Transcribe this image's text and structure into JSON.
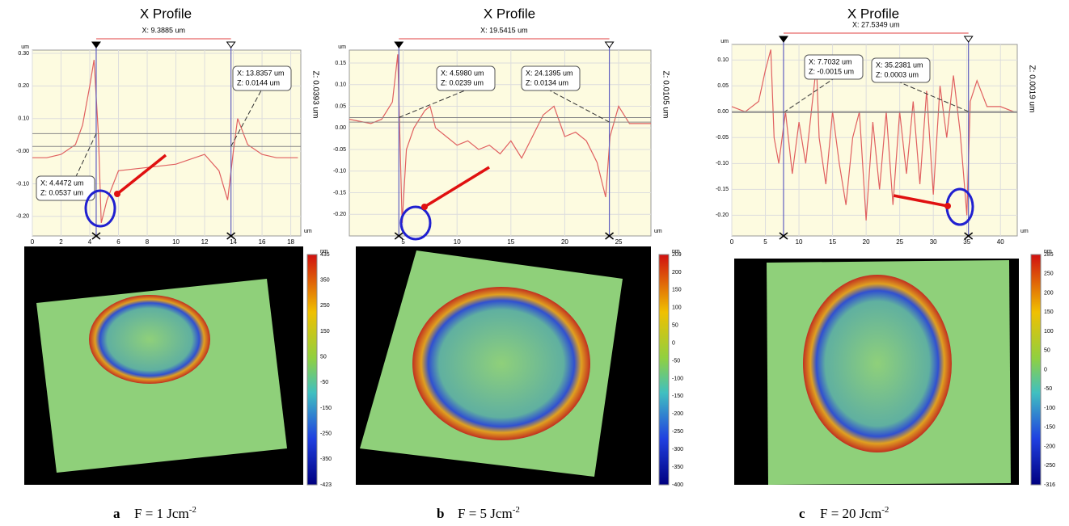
{
  "chart_data": [
    {
      "type": "line",
      "title": "X Profile",
      "measure": "X: 9.3885 um",
      "side_label": "Z: 0.0393 um",
      "xlabel": "um",
      "ylabel": "um",
      "color": "#e06060",
      "x": [
        0,
        1,
        2,
        3,
        3.5,
        4,
        4.3,
        4.6,
        4.8,
        5.2,
        6,
        8,
        10,
        12,
        13,
        13.6,
        14,
        14.3,
        15,
        16,
        17,
        18.5
      ],
      "values": [
        -0.02,
        -0.02,
        -0.01,
        0.02,
        0.08,
        0.2,
        0.28,
        0.05,
        -0.22,
        -0.15,
        -0.06,
        -0.05,
        -0.04,
        -0.01,
        -0.06,
        -0.15,
        0,
        0.1,
        0.02,
        -0.01,
        -0.02,
        -0.02
      ],
      "xlim": [
        0,
        18.7
      ],
      "ylim": [
        -0.26,
        0.31
      ],
      "xticks": [
        0,
        2,
        4,
        6,
        8,
        10,
        12,
        14,
        16,
        18
      ],
      "yticks": [
        {
          "value": -0.2,
          "label": "-0.20"
        },
        {
          "value": -0.1,
          "label": "-0.10"
        },
        {
          "value": 0,
          "label": "-0.00"
        },
        {
          "value": 0.1,
          "label": "0.10"
        },
        {
          "value": 0.2,
          "label": "0.20"
        },
        {
          "value": 0.3,
          "label": "0.30"
        }
      ],
      "grid": true,
      "cursors": [
        {
          "x": 4.4472,
          "z": 0.0537,
          "x_label": "X: 4.4472 um",
          "z_label": "Z: 0.0537 um"
        },
        {
          "x": 13.8357,
          "z": 0.0144,
          "x_label": "X: 13.8357 um",
          "z_label": "Z: 0.0144 um"
        }
      ]
    },
    {
      "type": "line",
      "title": "X Profile",
      "measure": "X: 19.5415 um",
      "side_label": "Z: 0.0105 um",
      "xlabel": "um",
      "ylabel": "um",
      "color": "#e06060",
      "x": [
        0,
        2,
        3,
        4,
        4.5,
        4.9,
        5.3,
        6,
        7,
        7.5,
        8,
        9,
        10,
        11,
        12,
        13,
        14,
        15,
        16,
        17,
        18,
        19,
        20,
        21,
        22,
        23,
        23.8,
        24.2,
        25,
        26,
        27,
        28
      ],
      "values": [
        0.02,
        0.01,
        0.02,
        0.06,
        0.17,
        -0.22,
        -0.05,
        0,
        0.04,
        0.05,
        0,
        -0.02,
        -0.04,
        -0.03,
        -0.05,
        -0.04,
        -0.06,
        -0.03,
        -0.07,
        -0.02,
        0.03,
        0.05,
        -0.02,
        -0.01,
        -0.03,
        -0.08,
        -0.16,
        -0.02,
        0.05,
        0.01,
        0.01,
        0.01
      ],
      "xlim": [
        0,
        28
      ],
      "ylim": [
        -0.25,
        0.18
      ],
      "xticks": [
        5,
        10,
        15,
        20,
        25
      ],
      "yticks": [
        {
          "value": -0.2,
          "label": "-0.20"
        },
        {
          "value": -0.15,
          "label": "-0.15"
        },
        {
          "value": -0.1,
          "label": "-0.10"
        },
        {
          "value": -0.05,
          "label": "-0.05"
        },
        {
          "value": 0,
          "label": "0.00"
        },
        {
          "value": 0.05,
          "label": "0.05"
        },
        {
          "value": 0.1,
          "label": "0.10"
        },
        {
          "value": 0.15,
          "label": "0.15"
        }
      ],
      "grid": true,
      "cursors": [
        {
          "x": 4.598,
          "z": 0.0239,
          "x_label": "X: 4.5980 um",
          "z_label": "Z: 0.0239 um"
        },
        {
          "x": 24.1395,
          "z": 0.0134,
          "x_label": "X: 24.1395 um",
          "z_label": "Z: 0.0134 um"
        }
      ]
    },
    {
      "type": "line",
      "title": "X Profile",
      "measure": "X: 27.5349 um",
      "side_label": "Z: 0.0019 um",
      "xlabel": "um",
      "ylabel": "um",
      "color": "#e06060",
      "x": [
        0,
        2,
        4,
        5,
        5.8,
        6.3,
        7,
        8,
        9,
        10,
        11,
        12,
        12.6,
        13,
        14,
        15,
        16,
        17,
        18,
        19,
        20,
        21,
        22,
        23,
        24,
        25,
        26,
        27,
        28,
        29,
        30,
        31,
        32,
        33,
        34,
        35,
        35.5,
        36.5,
        38,
        40,
        42
      ],
      "values": [
        0.01,
        0,
        0.02,
        0.08,
        0.12,
        -0.05,
        -0.1,
        0,
        -0.12,
        -0.02,
        -0.1,
        0.02,
        0.09,
        -0.05,
        -0.14,
        0,
        -0.1,
        -0.18,
        -0.05,
        0,
        -0.21,
        -0.02,
        -0.15,
        0,
        -0.18,
        0,
        -0.12,
        0.02,
        -0.14,
        0.04,
        -0.16,
        0.05,
        -0.05,
        0.07,
        -0.04,
        -0.2,
        0.02,
        0.06,
        0.01,
        0.01,
        0
      ],
      "xlim": [
        0,
        42.5
      ],
      "ylim": [
        -0.24,
        0.13
      ],
      "xticks": [
        0,
        5,
        10,
        15,
        20,
        25,
        30,
        35,
        40
      ],
      "yticks": [
        {
          "value": -0.2,
          "label": "-0.20"
        },
        {
          "value": -0.15,
          "label": "-0.15"
        },
        {
          "value": -0.1,
          "label": "-0.10"
        },
        {
          "value": -0.05,
          "label": "-0.05"
        },
        {
          "value": 0,
          "label": "0.00"
        },
        {
          "value": 0.05,
          "label": "0.05"
        },
        {
          "value": 0.1,
          "label": "0.10"
        }
      ],
      "grid": true,
      "cursors": [
        {
          "x": 7.7032,
          "z": -0.0015,
          "x_label": "X: 7.7032 um",
          "z_label": "Z: -0.0015 um"
        },
        {
          "x": 35.2381,
          "z": 0.0003,
          "x_label": "X: 35.2381 um",
          "z_label": "Z: 0.0003 um"
        }
      ]
    }
  ],
  "panels": [
    {
      "colorbar_unit": "nm",
      "colorbar_ticks": [
        "435",
        "350",
        "250",
        "150",
        "50",
        "-50",
        "-150",
        "-250",
        "-350",
        "-423"
      ],
      "letter": "a",
      "caption": "F = 1 Jcm",
      "caption_sup": "-2"
    },
    {
      "colorbar_unit": "nm",
      "colorbar_ticks": [
        "209",
        "200",
        "150",
        "100",
        "50",
        "0",
        "-50",
        "-100",
        "-150",
        "-200",
        "-250",
        "-300",
        "-350",
        "-400"
      ],
      "letter": "b",
      "caption": "F = 5 Jcm",
      "caption_sup": "-2"
    },
    {
      "colorbar_unit": "nm",
      "colorbar_ticks": [
        "285",
        "250",
        "200",
        "150",
        "100",
        "50",
        "0",
        "-50",
        "-100",
        "-150",
        "-200",
        "-250",
        "-316"
      ],
      "letter": "c",
      "caption": "F = 20 Jcm",
      "caption_sup": "-2"
    }
  ]
}
